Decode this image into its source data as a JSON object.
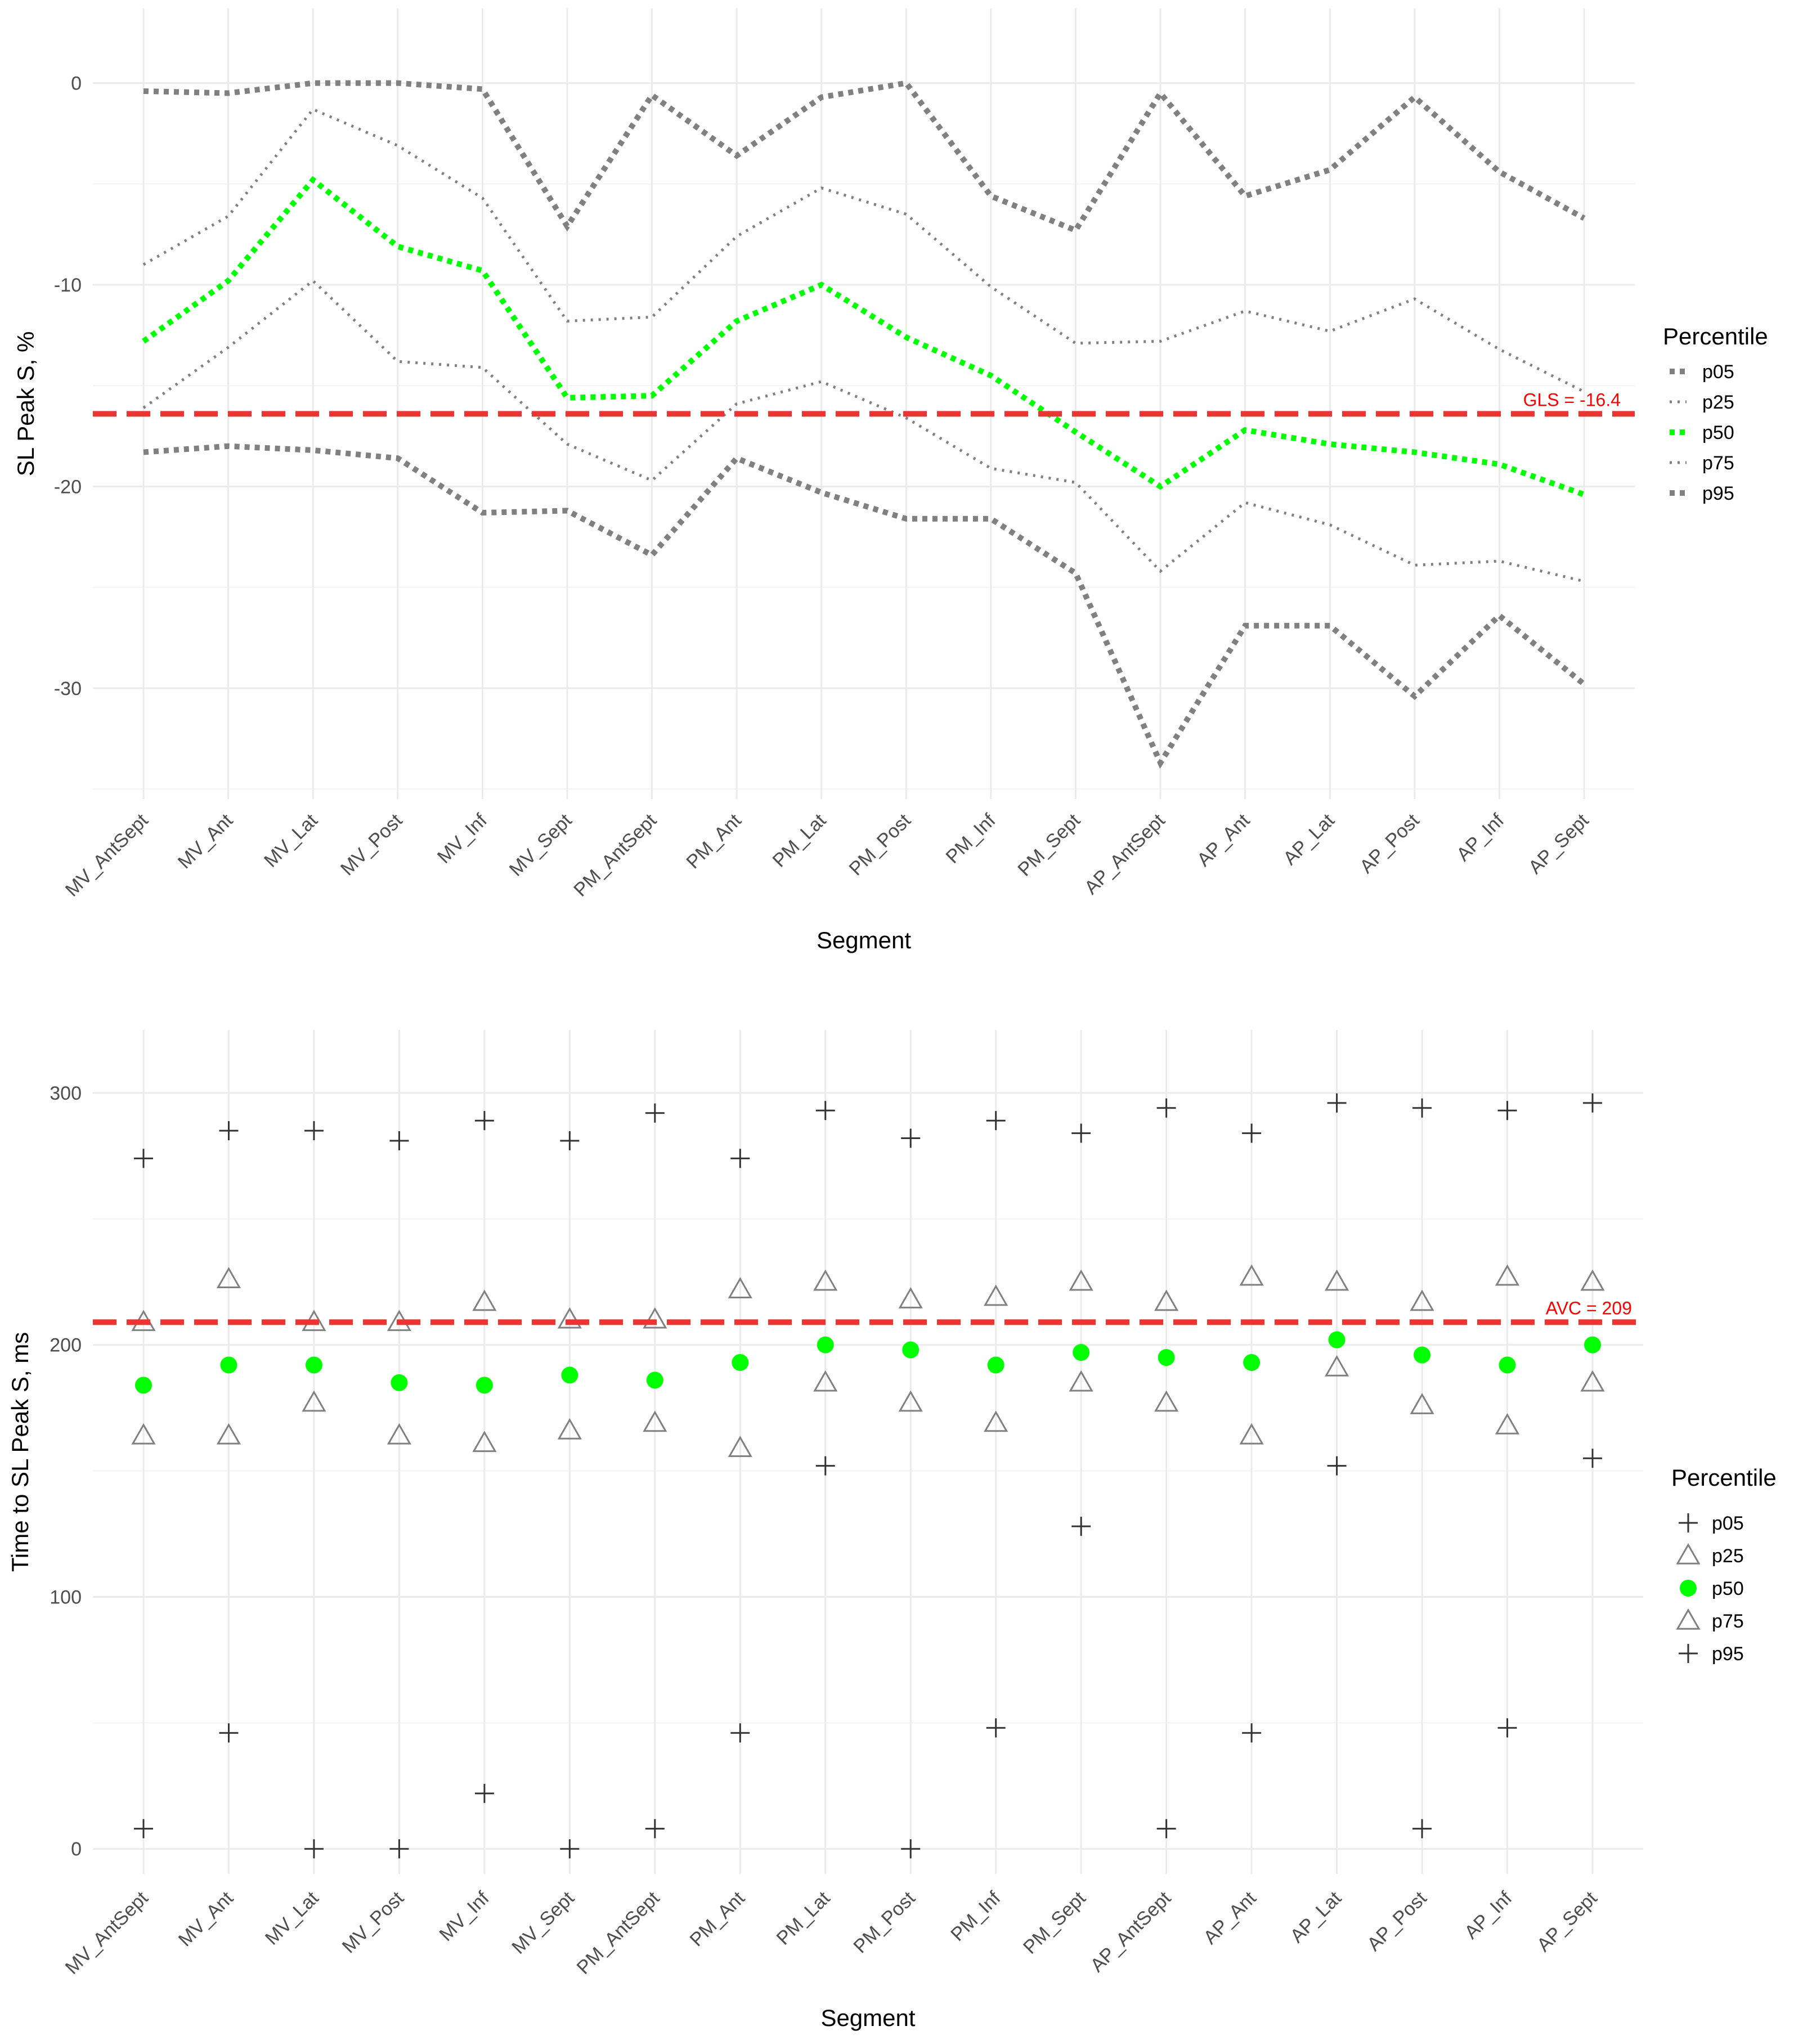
{
  "chart_data": [
    {
      "type": "line",
      "xlabel": "Segment",
      "ylabel": "SL Peak S, %",
      "categories": [
        "MV_AntSept",
        "MV_Ant",
        "MV_Lat",
        "MV_Post",
        "MV_Inf",
        "MV_Sept",
        "PM_AntSept",
        "PM_Ant",
        "PM_Lat",
        "PM_Post",
        "PM_Inf",
        "PM_Sept",
        "AP_AntSept",
        "AP_Ant",
        "AP_Lat",
        "AP_Post",
        "AP_Inf",
        "AP_Sept"
      ],
      "yticks": [
        "0",
        "-10",
        "-20",
        "-30"
      ],
      "ylim": [
        -35.5,
        3.7
      ],
      "grid": true,
      "legend": {
        "title": "Percentile",
        "position": "right"
      },
      "series": [
        {
          "name": "p05",
          "color": "#808080",
          "values": [
            -0.4,
            -0.5,
            0.0,
            0.0,
            -0.3,
            -7.1,
            -0.6,
            -3.6,
            -0.7,
            0.0,
            -5.6,
            -7.3,
            -0.5,
            -5.6,
            -4.3,
            -0.7,
            -4.4,
            -6.7
          ]
        },
        {
          "name": "p25",
          "color": "#808080",
          "values": [
            -9.0,
            -6.6,
            -1.3,
            -3.1,
            -5.7,
            -11.8,
            -11.6,
            -7.6,
            -5.2,
            -6.5,
            -10.1,
            -12.9,
            -12.8,
            -11.3,
            -12.3,
            -10.7,
            -13.2,
            -15.3
          ]
        },
        {
          "name": "p50",
          "color": "#00ff00",
          "values": [
            -12.8,
            -9.8,
            -4.8,
            -8.1,
            -9.3,
            -15.6,
            -15.5,
            -11.8,
            -10.0,
            -12.6,
            -14.5,
            -17.3,
            -20.0,
            -17.2,
            -17.9,
            -18.3,
            -18.9,
            -20.4
          ]
        },
        {
          "name": "p75",
          "color": "#808080",
          "values": [
            -16.1,
            -13.1,
            -9.8,
            -13.8,
            -14.1,
            -17.9,
            -19.7,
            -15.9,
            -14.8,
            -16.6,
            -19.1,
            -19.8,
            -24.2,
            -20.8,
            -21.9,
            -23.9,
            -23.7,
            -24.7
          ]
        },
        {
          "name": "p95",
          "color": "#808080",
          "values": [
            -18.3,
            -18.0,
            -18.2,
            -18.6,
            -21.3,
            -21.2,
            -23.4,
            -18.6,
            -20.3,
            -21.6,
            -21.6,
            -24.3,
            -33.7,
            -26.9,
            -26.9,
            -30.4,
            -26.4,
            -29.8
          ]
        }
      ],
      "reference_line": {
        "value": -16.4,
        "label": "GLS = -16.4",
        "color": "#ff0000"
      }
    },
    {
      "type": "scatter",
      "xlabel": "Segment",
      "ylabel": "Time to SL Peak S, ms",
      "categories": [
        "MV_AntSept",
        "MV_Ant",
        "MV_Lat",
        "MV_Post",
        "MV_Inf",
        "MV_Sept",
        "PM_AntSept",
        "PM_Ant",
        "PM_Lat",
        "PM_Post",
        "PM_Inf",
        "PM_Sept",
        "AP_AntSept",
        "AP_Ant",
        "AP_Lat",
        "AP_Post",
        "AP_Inf",
        "AP_Sept"
      ],
      "yticks": [
        "0",
        "100",
        "200",
        "300"
      ],
      "ylim": [
        -10,
        325
      ],
      "grid": true,
      "legend": {
        "title": "Percentile",
        "position": "right"
      },
      "series": [
        {
          "name": "p05",
          "color": "#333333",
          "marker": "plus",
          "values": [
            8,
            46,
            0,
            0,
            22,
            0,
            8,
            46,
            152,
            0,
            48,
            128,
            8,
            46,
            152,
            8,
            48,
            155
          ]
        },
        {
          "name": "p25",
          "color": "#808080",
          "marker": "triangle",
          "values": [
            164,
            164,
            177,
            164,
            161,
            166,
            169,
            159,
            185,
            177,
            169,
            185,
            177,
            164,
            191,
            176,
            168,
            185
          ]
        },
        {
          "name": "p50",
          "color": "#00ff00",
          "marker": "circle",
          "values": [
            184,
            192,
            192,
            185,
            184,
            188,
            186,
            193,
            200,
            198,
            192,
            197,
            195,
            193,
            202,
            196,
            192,
            200
          ]
        },
        {
          "name": "p75",
          "color": "#808080",
          "marker": "triangle",
          "values": [
            209,
            226,
            209,
            209,
            217,
            210,
            210,
            222,
            225,
            218,
            219,
            225,
            217,
            227,
            225,
            217,
            227,
            225
          ]
        },
        {
          "name": "p95",
          "color": "#333333",
          "marker": "plus",
          "values": [
            274,
            285,
            285,
            281,
            289,
            281,
            292,
            274,
            293,
            282,
            289,
            284,
            294,
            284,
            296,
            294,
            293,
            296
          ]
        }
      ],
      "reference_line": {
        "value": 209,
        "label": "AVC = 209",
        "color": "#ff0000"
      }
    }
  ]
}
